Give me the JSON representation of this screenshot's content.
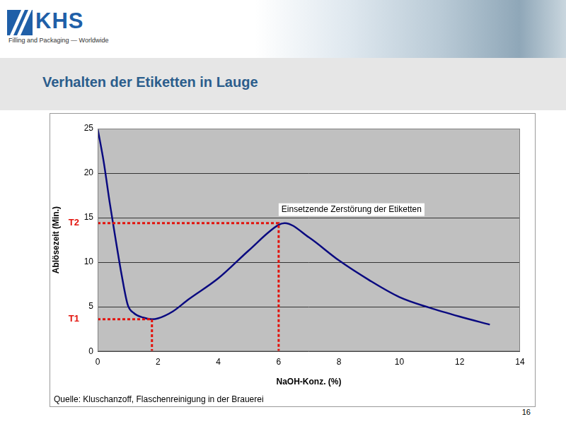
{
  "header": {
    "logo": "KHS",
    "tagline": "Filling and Packaging — Worldwide",
    "title": "Verhalten der Etiketten in Lauge"
  },
  "chart_data": {
    "type": "line",
    "x_label": "NaOH-Konz. (%)",
    "y_label": "Ablösezeit (Min.)",
    "annotation": "Einsetzende Zerstörung der Etiketten",
    "source": "Quelle: Kluschanzoff, Flaschenreinigung in der Brauerei",
    "x": [
      0,
      0.2,
      0.4,
      0.6,
      0.8,
      1.0,
      1.2,
      1.5,
      1.8,
      2.0,
      2.5,
      3,
      4,
      5,
      6,
      6.2,
      7,
      8,
      9,
      10,
      11,
      12,
      13
    ],
    "values": [
      25,
      21.3,
      16.7,
      12.5,
      8.5,
      5.2,
      4.3,
      3.8,
      3.6,
      3.7,
      4.5,
      5.8,
      8.2,
      11.3,
      14.2,
      14.4,
      12.8,
      10.2,
      8.0,
      6.1,
      4.9,
      3.9,
      3.0
    ],
    "color": "#0a0a80",
    "marker": "none",
    "xlim": [
      0,
      14
    ],
    "xticks": [
      0,
      2,
      4,
      6,
      8,
      10,
      12,
      14
    ],
    "ylim": [
      0,
      25
    ],
    "yticks": [
      0,
      5,
      10,
      15,
      20,
      25
    ],
    "grid": "y",
    "reference_lines": [
      {
        "label": "T1",
        "x": 1.8,
        "y": 3.6,
        "color": "#e3120b",
        "line_style": "dotted"
      },
      {
        "label": "T2",
        "x": 6,
        "y": 14.4,
        "color": "#e3120b",
        "line_style": "dotted"
      }
    ]
  },
  "page_number": 16
}
